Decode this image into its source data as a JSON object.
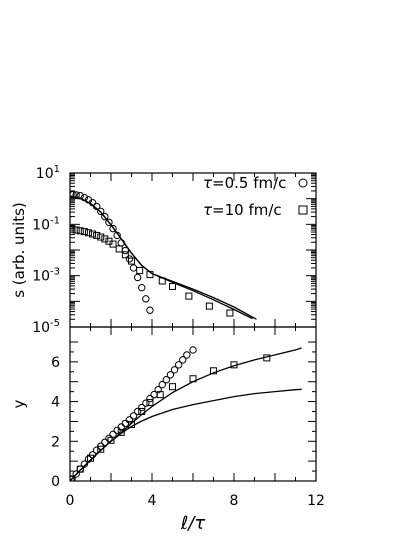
{
  "chart_data": [
    {
      "type": "scatter",
      "panel": "top",
      "ylabel": "s (arb. units)",
      "yscale": "log",
      "ylim": [
        1e-05,
        10
      ],
      "xlim": [
        0,
        12
      ],
      "yticks": [
        {
          "value": 10,
          "base": "10",
          "exp": "1"
        },
        {
          "value": 0.1,
          "base": "10",
          "exp": "-1"
        },
        {
          "value": 0.001,
          "base": "10",
          "exp": "-3"
        },
        {
          "value": 1e-05,
          "base": "10",
          "exp": "-5"
        }
      ],
      "legend": {
        "placement": "top-right",
        "entries": [
          {
            "tau_symbol": "τ",
            "text": "=0.5 fm/c",
            "marker": "circle"
          },
          {
            "tau_symbol": "τ",
            "text": "=10 fm/c",
            "marker": "square"
          }
        ]
      },
      "series": [
        {
          "marker": "circle",
          "points": [
            [
              0.05,
              1.5
            ],
            [
              0.15,
              1.45
            ],
            [
              0.3,
              1.4
            ],
            [
              0.5,
              1.3
            ],
            [
              0.7,
              1.1
            ],
            [
              0.9,
              0.9
            ],
            [
              1.1,
              0.7
            ],
            [
              1.3,
              0.5
            ],
            [
              1.5,
              0.32
            ],
            [
              1.7,
              0.2
            ],
            [
              1.9,
              0.12
            ],
            [
              2.1,
              0.068
            ],
            [
              2.3,
              0.037
            ],
            [
              2.5,
              0.019
            ],
            [
              2.7,
              0.0095
            ],
            [
              2.9,
              0.0045
            ],
            [
              3.1,
              0.002
            ],
            [
              3.3,
              0.00085
            ],
            [
              3.5,
              0.00034
            ],
            [
              3.7,
              0.000125
            ],
            [
              3.9,
              4.5e-05
            ]
          ]
        },
        {
          "marker": "square",
          "points": [
            [
              0.1,
              0.065
            ],
            [
              0.3,
              0.06
            ],
            [
              0.5,
              0.056
            ],
            [
              0.7,
              0.052
            ],
            [
              0.9,
              0.047
            ],
            [
              1.1,
              0.042
            ],
            [
              1.3,
              0.037
            ],
            [
              1.5,
              0.032
            ],
            [
              1.7,
              0.027
            ],
            [
              1.9,
              0.022
            ],
            [
              2.1,
              0.017
            ],
            [
              2.4,
              0.011
            ],
            [
              2.7,
              0.0065
            ],
            [
              3.0,
              0.0037
            ],
            [
              3.4,
              0.0016
            ],
            [
              3.9,
              0.0011
            ],
            [
              4.5,
              0.00062
            ],
            [
              5.0,
              0.00038
            ],
            [
              5.8,
              0.00016
            ],
            [
              6.8,
              6.5e-05
            ],
            [
              7.8,
              3.5e-05
            ]
          ]
        },
        {
          "style": "line",
          "points": [
            [
              0,
              1.25
            ],
            [
              0.5,
              1.05
            ],
            [
              1.0,
              0.65
            ],
            [
              1.5,
              0.3
            ],
            [
              2.0,
              0.095
            ],
            [
              2.5,
              0.027
            ],
            [
              3.0,
              0.0075
            ],
            [
              3.5,
              0.0025
            ],
            [
              4.0,
              0.0012
            ],
            [
              5.0,
              0.00055
            ],
            [
              6.0,
              0.00026
            ],
            [
              7.0,
              0.000115
            ],
            [
              8.0,
              4.8e-05
            ],
            [
              8.9,
              2.1e-05
            ]
          ]
        },
        {
          "style": "line",
          "points": [
            [
              0,
              1.25
            ],
            [
              0.5,
              1.05
            ],
            [
              1.0,
              0.65
            ],
            [
              1.5,
              0.3
            ],
            [
              2.0,
              0.095
            ],
            [
              2.5,
              0.027
            ],
            [
              3.0,
              0.0075
            ],
            [
              3.5,
              0.0025
            ],
            [
              4.0,
              0.0012
            ],
            [
              5.0,
              0.0006
            ],
            [
              6.0,
              0.0003
            ],
            [
              7.0,
              0.00014
            ],
            [
              8.0,
              6e-05
            ],
            [
              9.1,
              2e-05
            ]
          ]
        }
      ]
    },
    {
      "type": "scatter",
      "panel": "bottom",
      "ylabel": "y",
      "xlabel_italic": "ℓ/τ",
      "ylim": [
        0,
        7
      ],
      "xlim": [
        0,
        12
      ],
      "xticks": [
        0,
        4,
        8,
        12
      ],
      "yticks": [
        0,
        2,
        4,
        6
      ],
      "series": [
        {
          "marker": "circle",
          "points": [
            [
              0.1,
              0.1
            ],
            [
              0.3,
              0.35
            ],
            [
              0.5,
              0.6
            ],
            [
              0.7,
              0.85
            ],
            [
              0.9,
              1.1
            ],
            [
              1.1,
              1.32
            ],
            [
              1.3,
              1.55
            ],
            [
              1.5,
              1.75
            ],
            [
              1.7,
              1.95
            ],
            [
              1.9,
              2.15
            ],
            [
              2.1,
              2.35
            ],
            [
              2.3,
              2.55
            ],
            [
              2.5,
              2.72
            ],
            [
              2.7,
              2.9
            ],
            [
              2.9,
              3.08
            ],
            [
              3.1,
              3.28
            ],
            [
              3.3,
              3.5
            ],
            [
              3.5,
              3.7
            ],
            [
              3.7,
              3.92
            ],
            [
              3.9,
              4.15
            ],
            [
              4.1,
              4.35
            ],
            [
              4.3,
              4.6
            ],
            [
              4.5,
              4.85
            ],
            [
              4.7,
              5.1
            ],
            [
              4.9,
              5.35
            ],
            [
              5.1,
              5.6
            ],
            [
              5.3,
              5.85
            ],
            [
              5.5,
              6.1
            ],
            [
              5.7,
              6.35
            ],
            [
              6.0,
              6.6
            ]
          ]
        },
        {
          "marker": "square",
          "points": [
            [
              0.05,
              0.08
            ],
            [
              0.5,
              0.6
            ],
            [
              1.0,
              1.15
            ],
            [
              1.5,
              1.6
            ],
            [
              2.0,
              2.05
            ],
            [
              2.5,
              2.45
            ],
            [
              3.0,
              2.85
            ],
            [
              3.5,
              3.5
            ],
            [
              3.9,
              3.95
            ],
            [
              4.4,
              4.35
            ],
            [
              5.0,
              4.75
            ],
            [
              6.0,
              5.15
            ],
            [
              7.0,
              5.55
            ],
            [
              8.0,
              5.85
            ],
            [
              9.6,
              6.2
            ]
          ]
        },
        {
          "style": "line",
          "points": [
            [
              0,
              0
            ],
            [
              0.5,
              0.55
            ],
            [
              1,
              1.05
            ],
            [
              1.5,
              1.55
            ],
            [
              2,
              2.0
            ],
            [
              2.5,
              2.45
            ],
            [
              3,
              2.9
            ],
            [
              3.5,
              3.35
            ],
            [
              4,
              3.75
            ],
            [
              5,
              4.45
            ],
            [
              6,
              5.0
            ],
            [
              7,
              5.45
            ],
            [
              8,
              5.8
            ],
            [
              9,
              6.1
            ],
            [
              10,
              6.35
            ],
            [
              11,
              6.6
            ],
            [
              11.3,
              6.7
            ]
          ]
        },
        {
          "style": "line",
          "points": [
            [
              0,
              0
            ],
            [
              0.5,
              0.55
            ],
            [
              1,
              1.05
            ],
            [
              1.5,
              1.55
            ],
            [
              2,
              2.0
            ],
            [
              2.5,
              2.4
            ],
            [
              3,
              2.75
            ],
            [
              3.5,
              3.02
            ],
            [
              4,
              3.25
            ],
            [
              5,
              3.6
            ],
            [
              6,
              3.85
            ],
            [
              7,
              4.05
            ],
            [
              8,
              4.25
            ],
            [
              9,
              4.4
            ],
            [
              10,
              4.5
            ],
            [
              11,
              4.6
            ],
            [
              11.3,
              4.62
            ]
          ]
        }
      ]
    }
  ]
}
